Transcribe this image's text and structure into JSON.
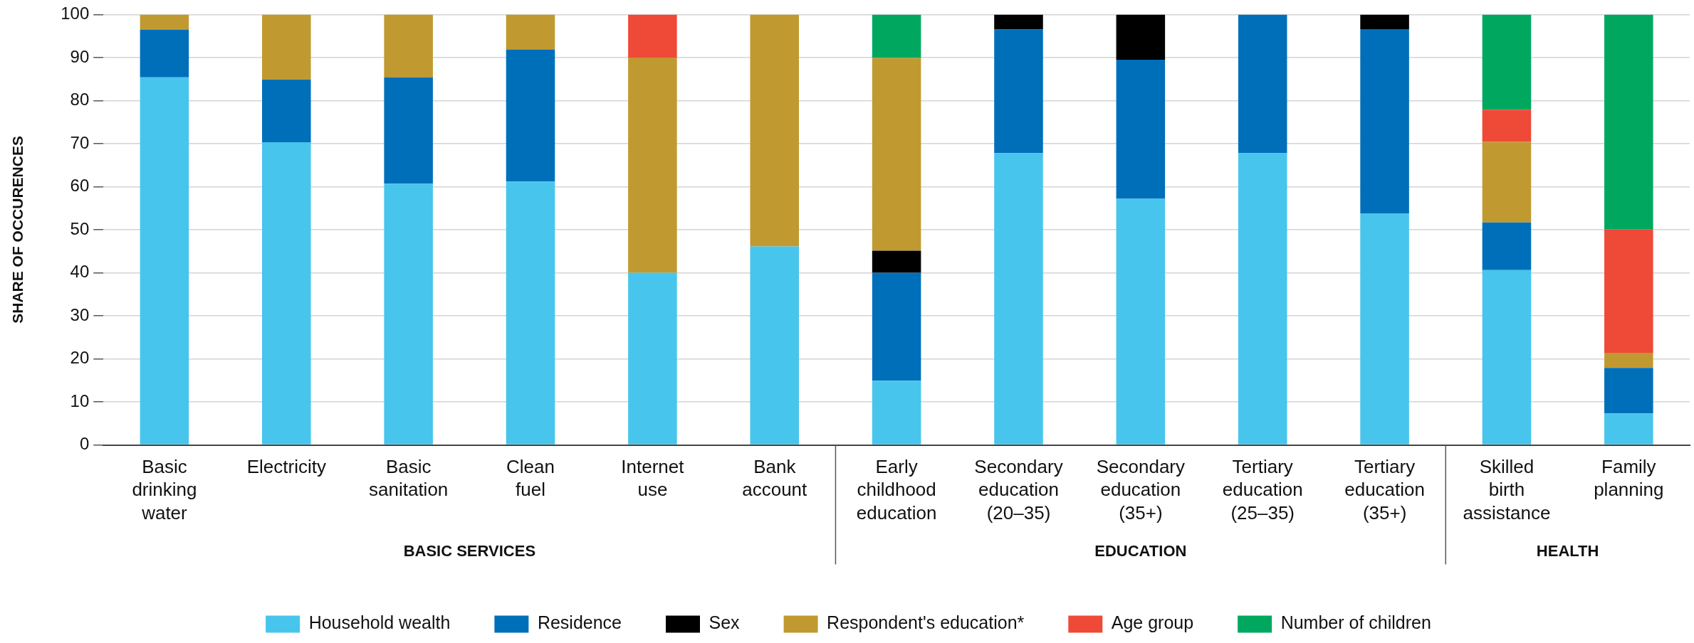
{
  "chart_data": {
    "type": "bar",
    "stacked": true,
    "ylabel": "SHARE OF OCCURENCES",
    "categories": [
      "Basic drinking water",
      "Electricity",
      "Basic sanitation",
      "Clean fuel",
      "Internet use",
      "Bank account",
      "Early childhood education",
      "Secondary education (20–35)",
      "Secondary education (35+)",
      "Tertiary education (25–35)",
      "Tertiary education (35+)",
      "Skilled birth assistance",
      "Family planning"
    ],
    "series": [
      {
        "name": "Household wealth",
        "color": "#47c5ec",
        "values": [
          85.4,
          70.3,
          60.7,
          61.2,
          40.0,
          46.1,
          14.9,
          67.8,
          57.2,
          67.8,
          53.7,
          40.6,
          7.3
        ]
      },
      {
        "name": "Residence",
        "color": "#006fba",
        "values": [
          11.1,
          14.6,
          24.7,
          30.7,
          null,
          null,
          25.1,
          28.7,
          32.3,
          32.2,
          42.9,
          11.1,
          10.6
        ]
      },
      {
        "name": "Sex",
        "color": "#000000",
        "values": [
          null,
          null,
          null,
          null,
          null,
          null,
          5.1,
          3.5,
          10.5,
          null,
          3.4,
          null,
          null
        ]
      },
      {
        "name": "Respondent's education*",
        "color": "#c09a30",
        "values": [
          3.5,
          15.1,
          14.6,
          8.1,
          50.0,
          53.9,
          44.8,
          null,
          null,
          null,
          null,
          18.7,
          3.5
        ]
      },
      {
        "name": "Age group",
        "color": "#ef4938",
        "values": [
          null,
          null,
          null,
          null,
          10.0,
          null,
          null,
          null,
          null,
          null,
          null,
          7.5,
          28.7
        ]
      },
      {
        "name": "Number of children",
        "color": "#00a85f",
        "values": [
          null,
          null,
          null,
          null,
          null,
          null,
          10.1,
          null,
          null,
          null,
          null,
          22.1,
          49.9
        ]
      }
    ],
    "ylim": [
      0,
      100
    ],
    "yticks": [
      0,
      10,
      20,
      30,
      40,
      50,
      60,
      70,
      80,
      90,
      100
    ],
    "grid": "y",
    "legend": "bottom",
    "annotations": [
      "BASIC SERVICES",
      "EDUCATION",
      "HEALTH"
    ]
  }
}
